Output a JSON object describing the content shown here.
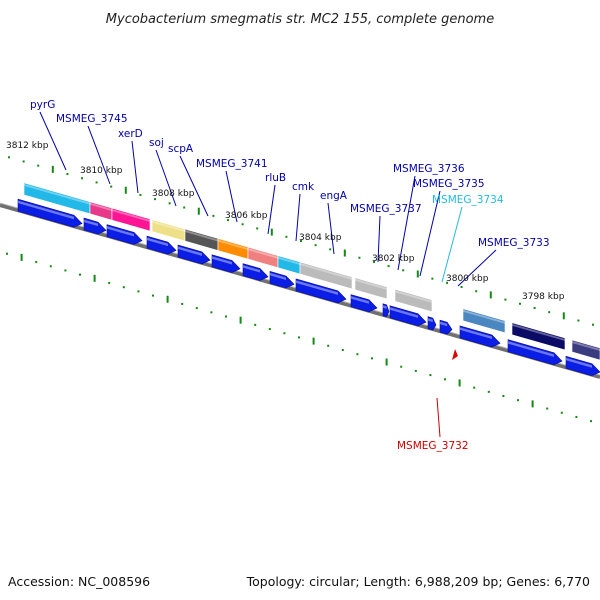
{
  "title": "Mycobacterium smegmatis str. MC2 155, complete genome",
  "accession": "Accession: NC_008596",
  "topology": "Topology: circular; Length: 6,988,209 bp; Genes: 6,770",
  "colors": {
    "label": "#0000aa",
    "label_highlight_cyan": "#22bbdd",
    "label_highlight_red": "#cc0000",
    "backbone": "#707070",
    "tick": "#138a13",
    "cds": "#0a1ee6"
  },
  "scale_labels": [
    "3812 kbp",
    "3810 kbp",
    "3808 kbp",
    "3806 kbp",
    "3804 kbp",
    "3802 kbp",
    "3800 kbp",
    "3798 kbp"
  ],
  "gene_labels": [
    {
      "name": "pyrG",
      "color": "label"
    },
    {
      "name": "MSMEG_3745",
      "color": "label"
    },
    {
      "name": "xerD",
      "color": "label"
    },
    {
      "name": "soj",
      "color": "label"
    },
    {
      "name": "scpA",
      "color": "label"
    },
    {
      "name": "MSMEG_3741",
      "color": "label"
    },
    {
      "name": "rluB",
      "color": "label"
    },
    {
      "name": "cmk",
      "color": "label"
    },
    {
      "name": "engA",
      "color": "label"
    },
    {
      "name": "MSMEG_3737",
      "color": "label"
    },
    {
      "name": "MSMEG_3736",
      "color": "label"
    },
    {
      "name": "MSMEG_3735",
      "color": "label"
    },
    {
      "name": "MSMEG_3734",
      "color": "label_highlight_cyan"
    },
    {
      "name": "MSMEG_3733",
      "color": "label"
    },
    {
      "name": "MSMEG_3732",
      "color": "label_highlight_red"
    }
  ],
  "feature_colors": [
    "#22b8e8",
    "#e8388a",
    "#ff1493",
    "#eee089",
    "#555555",
    "#ff8c00",
    "#f08080",
    "#22b8e8",
    "#bbbbbb",
    "#bbbbbb",
    "#bbbbbb",
    "#4a86c0",
    "#0b0b66",
    "#3b3b80"
  ]
}
